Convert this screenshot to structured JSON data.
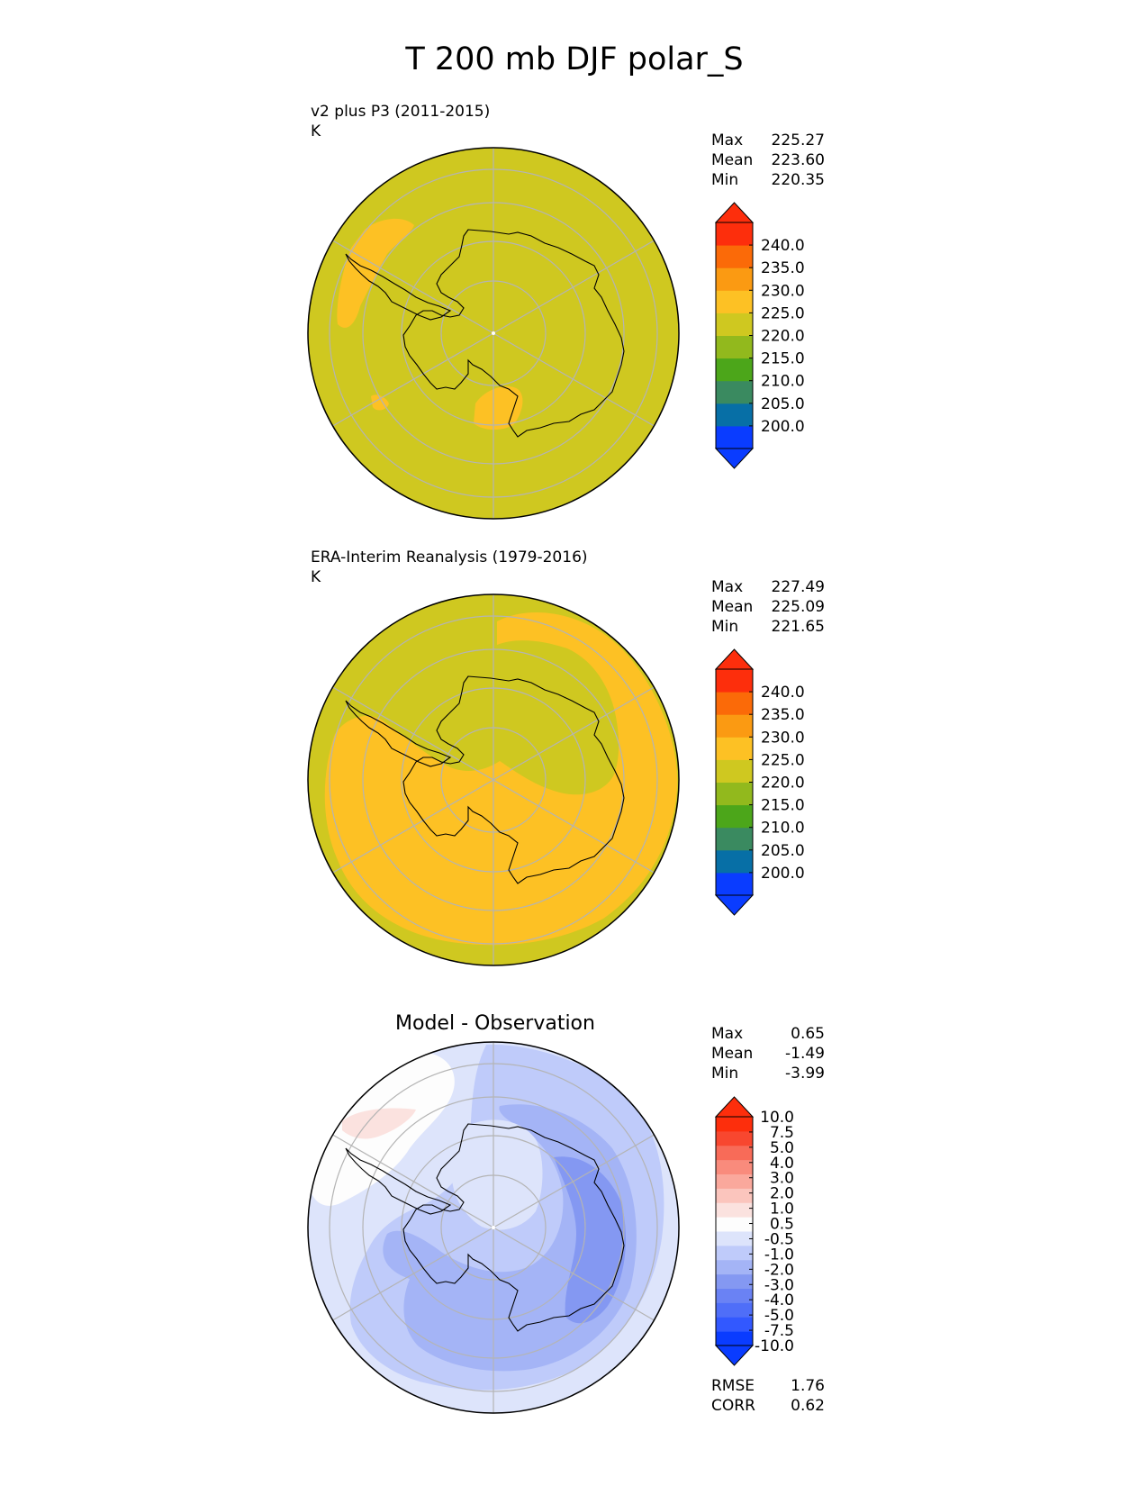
{
  "title": "T 200 mb DJF polar_S",
  "colors": {
    "abs": [
      "#0a3cff",
      "#076fa6",
      "#3a8a60",
      "#4ca61a",
      "#92b91d",
      "#cfc820",
      "#fdc124",
      "#fb9a12",
      "#fb6a08",
      "#fd2e0c"
    ],
    "abs_under": "#0a3cff",
    "abs_over": "#fd2e0c",
    "diff": [
      "#0a3cff",
      "#3258ff",
      "#4f6ef8",
      "#6a82f4",
      "#8498f2",
      "#a4b4f6",
      "#bfcbfa",
      "#dde4fb",
      "#fdfdfd",
      "#fbe2df",
      "#fbc5bd",
      "#faa89c",
      "#f98b7c",
      "#f86b58",
      "#f8472f",
      "#fd2e0c"
    ],
    "land_line": "#000000",
    "grid": "#b4b4b4"
  },
  "chart_data": [
    {
      "type": "contour",
      "name": "test",
      "title": "v2 plus P3 (2011-2015)",
      "units": "K",
      "stats": [
        {
          "label": "Max",
          "value": "225.27"
        },
        {
          "label": "Mean",
          "value": "223.60"
        },
        {
          "label": "Min",
          "value": "220.35"
        }
      ],
      "levels": [
        "240.0",
        "235.0",
        "230.0",
        "225.0",
        "220.0",
        "215.0",
        "210.0",
        "205.0",
        "200.0"
      ],
      "colorbar_range": [
        195,
        245
      ],
      "dominant_band": "220-225",
      "regions": [
        {
          "band": "225-230",
          "location": "Southern Ocean near Antarctic Peninsula (two patches)"
        },
        {
          "band": "225-230",
          "location": "Ross Sea / Ross Ice Shelf small patch"
        }
      ]
    },
    {
      "type": "contour",
      "name": "reference",
      "title": "ERA-Interim Reanalysis (1979-2016)",
      "units": "K",
      "stats": [
        {
          "label": "Max",
          "value": "227.49"
        },
        {
          "label": "Mean",
          "value": "225.09"
        },
        {
          "label": "Min",
          "value": "221.65"
        }
      ],
      "levels": [
        "240.0",
        "235.0",
        "230.0",
        "225.0",
        "220.0",
        "215.0",
        "210.0",
        "205.0",
        "200.0"
      ],
      "colorbar_range": [
        195,
        245
      ],
      "dominant_band": "225-230",
      "regions": [
        {
          "band": "220-225",
          "location": "outer rim and East Antarctic plateau interior"
        },
        {
          "band": "225-230",
          "location": "broad ring over West Antarctica and Southern Ocean"
        }
      ]
    },
    {
      "type": "contour",
      "name": "difference",
      "title": "Model - Observation",
      "stats": [
        {
          "label": "Max",
          "value": "0.65"
        },
        {
          "label": "Mean",
          "value": "-1.49"
        },
        {
          "label": "Min",
          "value": "-3.99"
        }
      ],
      "levels": [
        "10.0",
        "7.5",
        "5.0",
        "4.0",
        "3.0",
        "2.0",
        "1.0",
        "0.5",
        "-0.5",
        "-1.0",
        "-2.0",
        "-3.0",
        "-4.0",
        "-5.0",
        "-7.5",
        "-10.0"
      ],
      "level_values": [
        -10,
        -7.5,
        -5,
        -4,
        -3,
        -2,
        -1,
        -0.5,
        0.5,
        1,
        2,
        3,
        4,
        5,
        7.5,
        10
      ],
      "colorbar_range": [
        -12,
        12
      ],
      "metrics": [
        {
          "label": "RMSE",
          "value": "1.76"
        },
        {
          "label": "CORR",
          "value": "0.62"
        }
      ],
      "regions": [
        {
          "band": "0.5-1.0",
          "location": "small patch near Antarctic Peninsula"
        },
        {
          "band": "-0.5-0.5",
          "location": "Bellingshausen / Weddell sector"
        },
        {
          "band": "-2.0--3.0",
          "location": "ring over Southern Ocean"
        },
        {
          "band": "-3.0--4.0",
          "location": "East Antarctic coast"
        }
      ]
    }
  ]
}
